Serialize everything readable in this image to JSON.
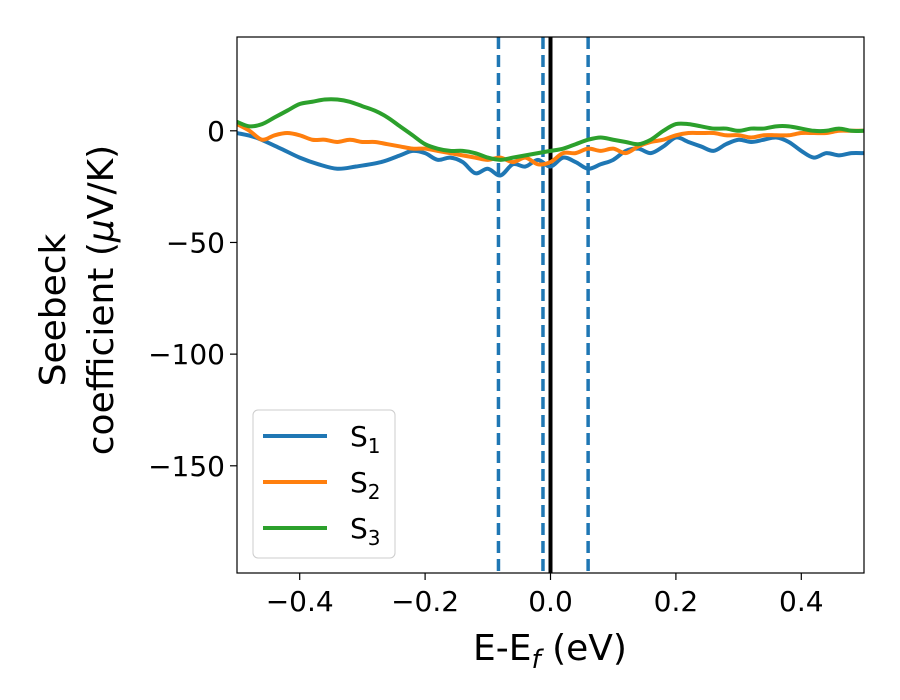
{
  "chart_data": {
    "type": "line",
    "title": "",
    "xlabel": "E-E",
    "xlabel_sub": "f",
    "xlabel_unit": " (eV)",
    "ylabel_line1": "Seebeck",
    "ylabel_line2": "coefficient  (",
    "ylabel_mu": "μ",
    "ylabel_unit": "V/K)",
    "xlim": [
      -0.5,
      0.5
    ],
    "ylim": [
      -198,
      42
    ],
    "grid": false,
    "legend_position": "lower-left",
    "x_ticks": [
      -0.4,
      -0.2,
      0.0,
      0.2,
      0.4
    ],
    "x_tick_labels": [
      "−0.4",
      "−0.2",
      "0.0",
      "0.2",
      "0.4"
    ],
    "y_ticks": [
      0,
      -50,
      -100,
      -150
    ],
    "y_tick_labels": [
      "0",
      "−50",
      "−100",
      "−150"
    ],
    "vlines": [
      {
        "x": -0.083,
        "style": "dashed",
        "color": "#1f77b4"
      },
      {
        "x": -0.012,
        "style": "dashed",
        "color": "#1f77b4"
      },
      {
        "x": 0.0,
        "style": "solid",
        "color": "#000000"
      },
      {
        "x": 0.06,
        "style": "dashed",
        "color": "#1f77b4"
      }
    ],
    "series": [
      {
        "name": "S",
        "sub": "1",
        "color": "#1f77b4",
        "x": [
          -0.5,
          -0.47,
          -0.43,
          -0.4,
          -0.37,
          -0.34,
          -0.31,
          -0.27,
          -0.24,
          -0.22,
          -0.2,
          -0.18,
          -0.16,
          -0.14,
          -0.12,
          -0.1,
          -0.08,
          -0.06,
          -0.04,
          -0.02,
          0.0,
          0.02,
          0.04,
          0.06,
          0.08,
          0.1,
          0.12,
          0.14,
          0.16,
          0.18,
          0.2,
          0.22,
          0.24,
          0.26,
          0.28,
          0.3,
          0.32,
          0.34,
          0.36,
          0.38,
          0.4,
          0.42,
          0.44,
          0.46,
          0.48,
          0.5
        ],
        "y": [
          -1,
          -3,
          -8,
          -12,
          -15,
          -17,
          -16,
          -14,
          -11,
          -9,
          -10,
          -13,
          -12,
          -14,
          -19,
          -17,
          -20,
          -15,
          -16,
          -13,
          -16,
          -12,
          -14,
          -17,
          -15,
          -13,
          -9,
          -8,
          -10,
          -7,
          -3,
          -5,
          -7,
          -9,
          -6,
          -4,
          -5,
          -4,
          -3,
          -5,
          -9,
          -12,
          -10,
          -11,
          -10,
          -10
        ]
      },
      {
        "name": "S",
        "sub": "2",
        "color": "#ff7f0e",
        "x": [
          -0.5,
          -0.48,
          -0.46,
          -0.44,
          -0.42,
          -0.4,
          -0.38,
          -0.36,
          -0.34,
          -0.32,
          -0.3,
          -0.28,
          -0.26,
          -0.24,
          -0.22,
          -0.2,
          -0.18,
          -0.16,
          -0.14,
          -0.12,
          -0.1,
          -0.08,
          -0.06,
          -0.04,
          -0.02,
          0.0,
          0.02,
          0.04,
          0.06,
          0.08,
          0.1,
          0.12,
          0.14,
          0.16,
          0.18,
          0.2,
          0.22,
          0.24,
          0.26,
          0.28,
          0.3,
          0.32,
          0.34,
          0.36,
          0.38,
          0.4,
          0.42,
          0.44,
          0.46,
          0.48,
          0.5
        ],
        "y": [
          3,
          0,
          -4,
          -2,
          -1,
          -2,
          -4,
          -4,
          -5,
          -4,
          -5,
          -5,
          -6,
          -7,
          -8,
          -8,
          -9,
          -10,
          -11,
          -12,
          -13,
          -12,
          -14,
          -12,
          -15,
          -14,
          -10,
          -10,
          -8,
          -9,
          -8,
          -10,
          -7,
          -5,
          -4,
          -2,
          -1,
          -1,
          -1,
          -2,
          -2,
          -3,
          -2,
          -2,
          -2,
          -1,
          -1,
          -1,
          0,
          0,
          0
        ]
      },
      {
        "name": "S",
        "sub": "3",
        "color": "#2ca02c",
        "x": [
          -0.5,
          -0.48,
          -0.46,
          -0.44,
          -0.42,
          -0.4,
          -0.38,
          -0.36,
          -0.34,
          -0.32,
          -0.3,
          -0.28,
          -0.26,
          -0.24,
          -0.22,
          -0.2,
          -0.18,
          -0.16,
          -0.14,
          -0.12,
          -0.1,
          -0.08,
          -0.06,
          -0.04,
          -0.02,
          0.0,
          0.02,
          0.04,
          0.06,
          0.08,
          0.1,
          0.12,
          0.14,
          0.16,
          0.18,
          0.2,
          0.22,
          0.24,
          0.26,
          0.28,
          0.3,
          0.32,
          0.34,
          0.36,
          0.38,
          0.4,
          0.42,
          0.44,
          0.46,
          0.48,
          0.5
        ],
        "y": [
          4,
          2,
          3,
          6,
          9,
          12,
          13,
          14,
          14,
          13,
          11,
          9,
          6,
          2,
          -2,
          -6,
          -8,
          -9,
          -9,
          -10,
          -12,
          -13,
          -12,
          -11,
          -10,
          -9,
          -8,
          -6,
          -4,
          -3,
          -4,
          -5,
          -6,
          -4,
          0,
          3,
          3,
          2,
          1,
          1,
          0,
          1,
          1,
          2,
          2,
          1,
          0,
          0,
          1,
          0,
          0
        ]
      }
    ]
  }
}
